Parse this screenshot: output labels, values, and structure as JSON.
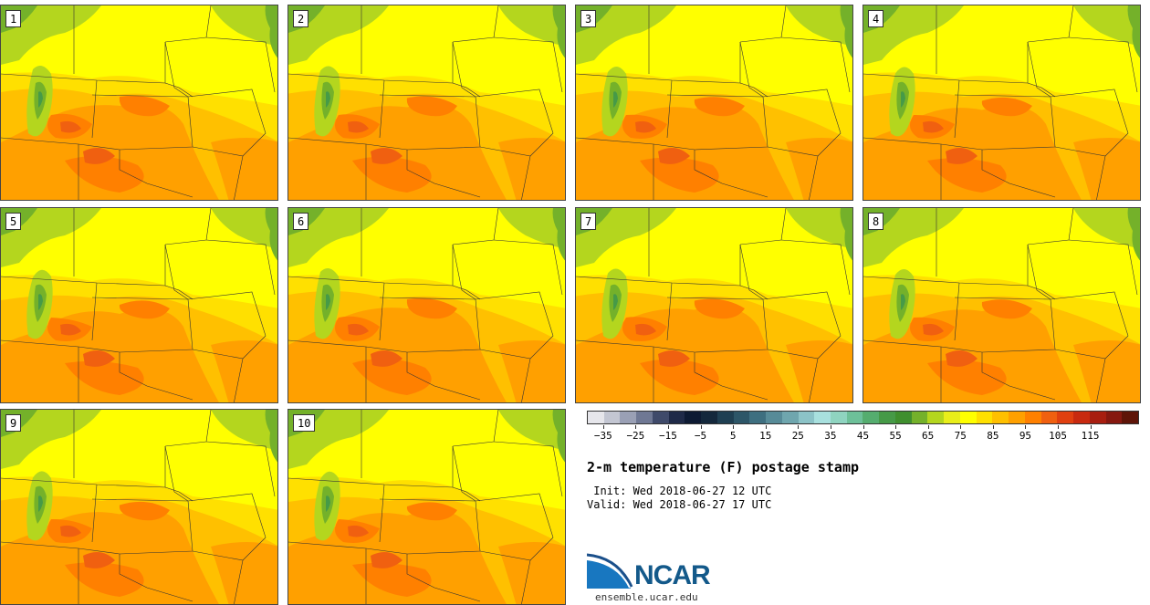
{
  "panels": [
    {
      "label": "1"
    },
    {
      "label": "2"
    },
    {
      "label": "3"
    },
    {
      "label": "4"
    },
    {
      "label": "5"
    },
    {
      "label": "6"
    },
    {
      "label": "7"
    },
    {
      "label": "8"
    },
    {
      "label": "9"
    },
    {
      "label": "10"
    }
  ],
  "colorbar": {
    "colors": [
      "#e6e6eb",
      "#c3c6d2",
      "#9aa0b5",
      "#6f7894",
      "#3f4a6a",
      "#1f2a48",
      "#0d1a33",
      "#14283c",
      "#1f3f52",
      "#2d5668",
      "#3e6f80",
      "#578b98",
      "#6fa6ae",
      "#8cc3c7",
      "#a8e0de",
      "#8fd4c0",
      "#6dc099",
      "#55ad6f",
      "#469a47",
      "#3f8f2e",
      "#74b12a",
      "#b4d61e",
      "#e9ee1a",
      "#ffff00",
      "#ffe000",
      "#ffc000",
      "#ffa000",
      "#ff8000",
      "#f06010",
      "#e04010",
      "#c82a10",
      "#a81e10",
      "#861810",
      "#5e1408"
    ],
    "ticks": [
      "−35",
      "−25",
      "−15",
      "−5",
      "5",
      "15",
      "25",
      "35",
      "45",
      "55",
      "65",
      "75",
      "85",
      "95",
      "105",
      "115"
    ]
  },
  "text": {
    "title": "2-m temperature (F) postage stamp",
    "init": " Init: Wed 2018-06-27 12 UTC",
    "valid": "Valid: Wed 2018-06-27 17 UTC",
    "org": "NCAR",
    "site": "ensemble.ucar.edu"
  },
  "map_colors": {
    "green_dark": "#469a47",
    "green": "#74b12a",
    "green_light": "#b4d61e",
    "yellow": "#ffff00",
    "yellow2": "#ffe000",
    "orange_light": "#ffc000",
    "orange": "#ffa000",
    "orange_dark": "#ff8000",
    "red_orange": "#f06010",
    "border": "#333333"
  }
}
